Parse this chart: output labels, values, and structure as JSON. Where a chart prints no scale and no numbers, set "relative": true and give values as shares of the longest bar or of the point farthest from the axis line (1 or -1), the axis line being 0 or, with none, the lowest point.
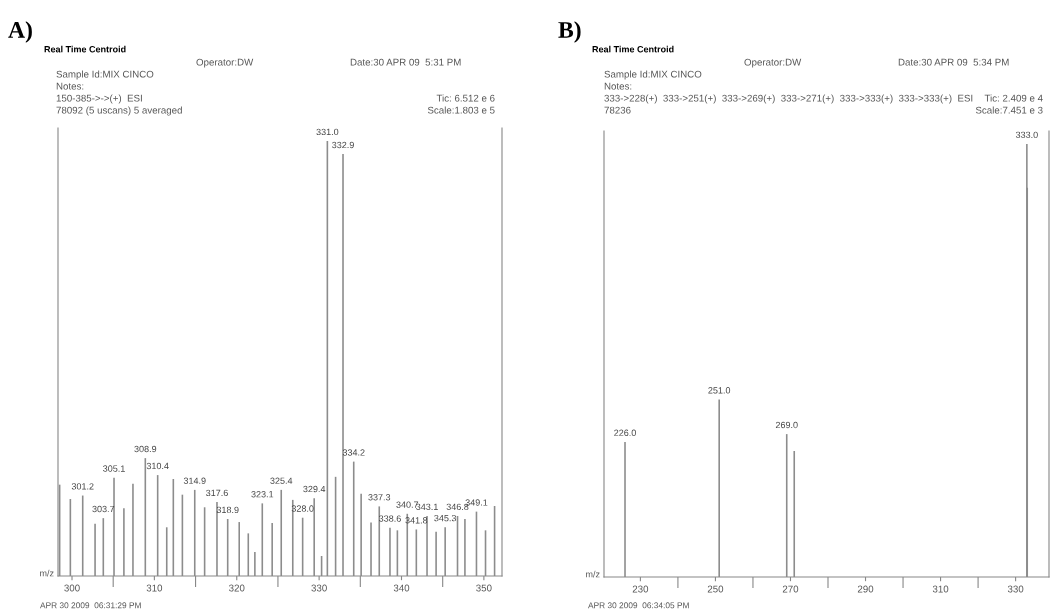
{
  "chart_data": [
    {
      "type": "bar",
      "title": "Real Time Centroid",
      "xlabel": "m/z",
      "relative": true,
      "color": "#8c8c8c",
      "x": [
        298.5,
        299.8,
        301.3,
        302.8,
        303.8,
        305.1,
        306.3,
        307.4,
        308.9,
        310.4,
        311.5,
        312.3,
        313.4,
        314.9,
        316.1,
        317.6,
        318.9,
        320.3,
        321.4,
        322.2,
        323.1,
        324.3,
        325.4,
        326.8,
        328.0,
        329.4,
        330.3,
        331.0,
        332.0,
        332.9,
        334.2,
        335.1,
        336.3,
        337.3,
        338.6,
        339.5,
        340.7,
        341.8,
        343.1,
        344.2,
        345.3,
        346.8,
        347.7,
        349.1,
        350.2,
        351.3
      ],
      "values": [
        0.21,
        0.177,
        0.185,
        0.12,
        0.133,
        0.226,
        0.156,
        0.212,
        0.271,
        0.232,
        0.112,
        0.223,
        0.187,
        0.198,
        0.158,
        0.17,
        0.131,
        0.124,
        0.098,
        0.055,
        0.167,
        0.122,
        0.198,
        0.175,
        0.134,
        0.179,
        0.046,
        1.0,
        0.228,
        0.97,
        0.263,
        0.189,
        0.123,
        0.16,
        0.111,
        0.105,
        0.143,
        0.107,
        0.138,
        0.102,
        0.112,
        0.138,
        0.131,
        0.148,
        0.105,
        0.161
      ],
      "xlim": [
        298.3,
        352.2
      ],
      "xticks": [
        300,
        {
          "value": 305,
          "label": null
        },
        310,
        {
          "value": 315,
          "label": null
        },
        320,
        {
          "value": 325,
          "label": null
        },
        330,
        {
          "value": 335,
          "label": null
        },
        340,
        {
          "value": 345,
          "label": null
        },
        350
      ],
      "tick_labels": "x",
      "annotations": [
        "A)",
        "Operator:DW",
        "Date:30 APR 09  5:31 PM",
        "Sample Id:MIX CINCO",
        "Notes:",
        "150-385->->(+)  ESI",
        "78092 (5 uscans) 5 averaged",
        "Tic: 6.512 e 6",
        "Scale:1.803 e 5",
        "APR 30 2009  06:31:29 PM",
        {
          "text": "301.2",
          "x": 301.3,
          "y": 0.185
        },
        {
          "text": "303.7",
          "x": 303.8,
          "y": 0.133
        },
        {
          "text": "305.1",
          "x": 305.1,
          "y": 0.226
        },
        {
          "text": "308.9",
          "x": 308.9,
          "y": 0.271
        },
        {
          "text": "310.4",
          "x": 310.4,
          "y": 0.232
        },
        {
          "text": "314.9",
          "x": 314.9,
          "y": 0.198
        },
        {
          "text": "317.6",
          "x": 317.6,
          "y": 0.17
        },
        {
          "text": "318.9",
          "x": 318.9,
          "y": 0.131
        },
        {
          "text": "323.1",
          "x": 323.1,
          "y": 0.167
        },
        {
          "text": "325.4",
          "x": 325.4,
          "y": 0.198
        },
        {
          "text": "328.0",
          "x": 328.0,
          "y": 0.134
        },
        {
          "text": "329.4",
          "x": 329.4,
          "y": 0.179
        },
        {
          "text": "331.0",
          "x": 331.0,
          "y": 1.0
        },
        {
          "text": "332.9",
          "x": 332.9,
          "y": 0.97
        },
        {
          "text": "334.2",
          "x": 334.2,
          "y": 0.263
        },
        {
          "text": "337.3",
          "x": 337.3,
          "y": 0.16
        },
        {
          "text": "338.6",
          "x": 338.6,
          "y": 0.111
        },
        {
          "text": "340.7",
          "x": 340.7,
          "y": 0.143
        },
        {
          "text": "341.8",
          "x": 341.8,
          "y": 0.107
        },
        {
          "text": "343.1",
          "x": 343.1,
          "y": 0.138
        },
        {
          "text": "345.3",
          "x": 345.3,
          "y": 0.112
        },
        {
          "text": "346.8",
          "x": 346.8,
          "y": 0.138
        },
        {
          "text": "349.1",
          "x": 349.1,
          "y": 0.148
        }
      ]
    },
    {
      "type": "bar",
      "title": "Real Time Centroid",
      "xlabel": "m/z",
      "relative": true,
      "color": "#8c8c8c",
      "x": [
        225.9,
        251.0,
        269.0,
        271.0,
        333.0,
        333.1
      ],
      "values": [
        0.312,
        0.41,
        0.33,
        0.291,
        1.0,
        0.899
      ],
      "xlim": [
        220.3,
        338.9
      ],
      "xticks": [
        230,
        {
          "value": 240,
          "label": null
        },
        250,
        {
          "value": 260,
          "label": null
        },
        270,
        {
          "value": 280,
          "label": null
        },
        290,
        {
          "value": 300,
          "label": null
        },
        310,
        {
          "value": 320,
          "label": null
        },
        330
      ],
      "tick_labels": "x",
      "annotations": [
        "B)",
        "Operator:DW",
        "Date:30 APR 09  5:34 PM",
        "Sample Id:MIX CINCO",
        "Notes:",
        "333->228(+)  333->251(+)  333->269(+)  333->271(+)  333->333(+)  333->333(+)  ESI",
        "78236",
        "Tic: 2.409 e 4",
        "Scale:7.451 e 3",
        "APR 30 2009  06:34:05 PM",
        {
          "text": "226.0",
          "x": 225.9,
          "y": 0.312
        },
        {
          "text": "251.0",
          "x": 251.0,
          "y": 0.41
        },
        {
          "text": "269.0",
          "x": 269.0,
          "y": 0.33
        },
        {
          "text": "333.0",
          "x": 333.0,
          "y": 1.0
        }
      ]
    }
  ]
}
